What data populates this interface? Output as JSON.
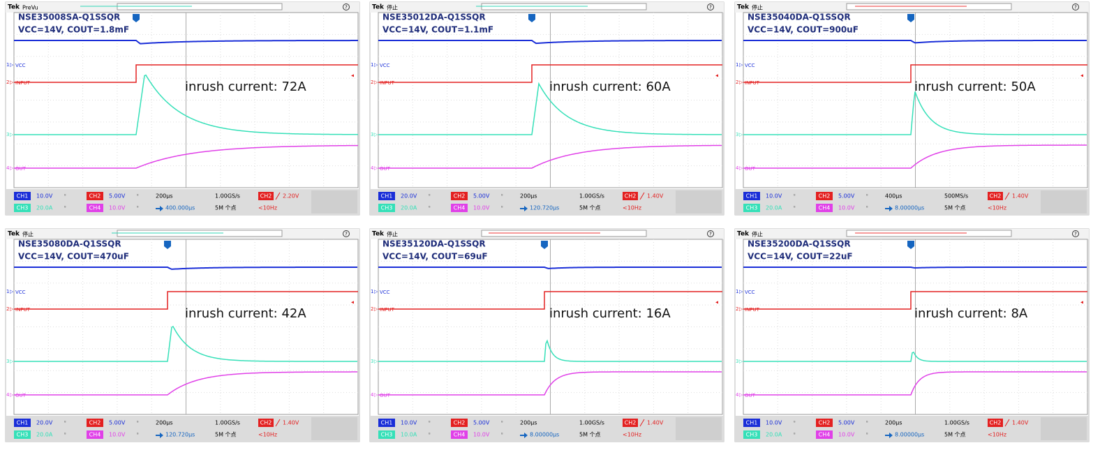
{
  "panels": [
    {
      "brand": "Tek",
      "status": "PreVu",
      "title": "NSE35008SA-Q1SSQR",
      "subtitle": "VCC=14V, COUT=1.8mF",
      "annotation": "inrush current: 72A",
      "trace_labels": [
        "VCC",
        "INPUT",
        "OUT"
      ],
      "channel_numbers": [
        "1",
        "2",
        "3",
        "4"
      ],
      "channels": [
        "CH1",
        "CH2",
        "CH3",
        "CH4"
      ],
      "scales": [
        "10.0V",
        "5.00V",
        "20.0A",
        "10.0V"
      ],
      "timebase": "200µs",
      "sample_rate": "1.00GS/s",
      "trigger_source": "CH2",
      "trigger_level": "2.20V",
      "position": "400.000µs",
      "record_length": "5M 个点",
      "frequency": "<10Hz"
    },
    {
      "brand": "Tek",
      "status": "停止",
      "title": "NSE35012DA-Q1SSQR",
      "subtitle": "VCC=14V, COUT=1.1mF",
      "annotation": "inrush current: 60A",
      "trace_labels": [
        "VCC",
        "INPUT",
        "OUT"
      ],
      "channel_numbers": [
        "1",
        "2",
        "3",
        "4"
      ],
      "channels": [
        "CH1",
        "CH2",
        "CH3",
        "CH4"
      ],
      "scales": [
        "20.0V",
        "5.00V",
        "20.0A",
        "10.0V"
      ],
      "timebase": "200µs",
      "sample_rate": "1.00GS/s",
      "trigger_source": "CH2",
      "trigger_level": "1.40V",
      "position": "120.720µs",
      "record_length": "5M 个点",
      "frequency": "<10Hz"
    },
    {
      "brand": "Tek",
      "status": "停止",
      "title": "NSE35040DA-Q1SSQR",
      "subtitle": "VCC=14V, COUT=900uF",
      "annotation": "inrush current: 50A",
      "trace_labels": [
        "VCC",
        "INPUT",
        "OUT"
      ],
      "channel_numbers": [
        "1",
        "2",
        "3",
        "4"
      ],
      "channels": [
        "CH1",
        "CH2",
        "CH3",
        "CH4"
      ],
      "scales": [
        "10.0V",
        "5.00V",
        "20.0A",
        "10.0V"
      ],
      "timebase": "400µs",
      "sample_rate": "500MS/s",
      "trigger_source": "CH2",
      "trigger_level": "1.40V",
      "position": "8.00000µs",
      "record_length": "5M 个点",
      "frequency": "<10Hz"
    },
    {
      "brand": "Tek",
      "status": "停止",
      "title": "NSE35080DA-Q1SSQR",
      "subtitle": "VCC=14V, COUT=470uF",
      "annotation": "inrush current: 42A",
      "trace_labels": [
        "VCC",
        "INPUT",
        "OUT"
      ],
      "channel_numbers": [
        "1",
        "2",
        "3",
        "4"
      ],
      "channels": [
        "CH1",
        "CH2",
        "CH3",
        "CH4"
      ],
      "scales": [
        "20.0V",
        "5.00V",
        "20.0A",
        "10.0V"
      ],
      "timebase": "200µs",
      "sample_rate": "1.00GS/s",
      "trigger_source": "CH2",
      "trigger_level": "1.40V",
      "position": "120.720µs",
      "record_length": "5M 个点",
      "frequency": "<10Hz"
    },
    {
      "brand": "Tek",
      "status": "停止",
      "title": "NSE35120DA-Q1SSQR",
      "subtitle": "VCC=14V, COUT=69uF",
      "annotation": "inrush current: 16A",
      "trace_labels": [
        "VCC",
        "INPUT",
        "OUT"
      ],
      "channel_numbers": [
        "1",
        "2",
        "3",
        "4"
      ],
      "channels": [
        "CH1",
        "CH2",
        "CH3",
        "CH4"
      ],
      "scales": [
        "10.0V",
        "5.00V",
        "10.0A",
        "10.0V"
      ],
      "timebase": "200µs",
      "sample_rate": "1.00GS/s",
      "trigger_source": "CH2",
      "trigger_level": "1.40V",
      "position": "8.00000µs",
      "record_length": "5M 个点",
      "frequency": "<10Hz"
    },
    {
      "brand": "Tek",
      "status": "停止",
      "title": "NSE35200DA-Q1SSQR",
      "subtitle": "VCC=14V, COUT=22uF",
      "annotation": "inrush current: 8A",
      "trace_labels": [
        "VCC",
        "INPUT",
        "OUT"
      ],
      "channel_numbers": [
        "1",
        "2",
        "3",
        "4"
      ],
      "channels": [
        "CH1",
        "CH2",
        "CH3",
        "CH4"
      ],
      "scales": [
        "10.0V",
        "5.00V",
        "20.0A",
        "10.0V"
      ],
      "timebase": "200µs",
      "sample_rate": "1.00GS/s",
      "trigger_source": "CH2",
      "trigger_level": "1.40V",
      "position": "8.00000µs",
      "record_length": "5M 个点",
      "frequency": "<10Hz"
    }
  ]
}
